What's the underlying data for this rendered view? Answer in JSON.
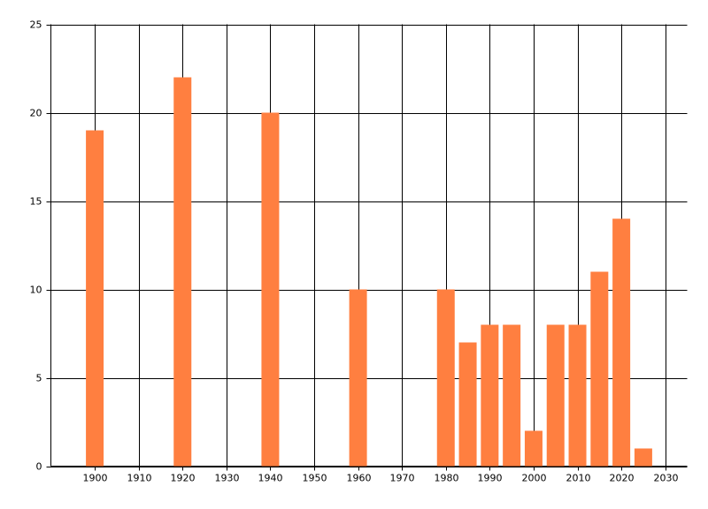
{
  "chart_data": {
    "type": "bar",
    "x": [
      1900,
      1920,
      1940,
      1960,
      1980,
      1985,
      1990,
      1995,
      2000,
      2005,
      2010,
      2015,
      2020,
      2025
    ],
    "values": [
      19,
      22,
      20,
      10,
      10,
      7,
      8,
      8,
      2,
      8,
      8,
      11,
      14,
      1
    ],
    "color": "#ff7f40",
    "xlim": [
      1890,
      2035
    ],
    "xticks": [
      1900,
      1910,
      1920,
      1930,
      1940,
      1950,
      1960,
      1970,
      1980,
      1990,
      2000,
      2010,
      2020,
      2030
    ],
    "ylim": [
      0,
      25
    ],
    "yticks": [
      0,
      5,
      10,
      15,
      20,
      25
    ],
    "grid": true
  }
}
